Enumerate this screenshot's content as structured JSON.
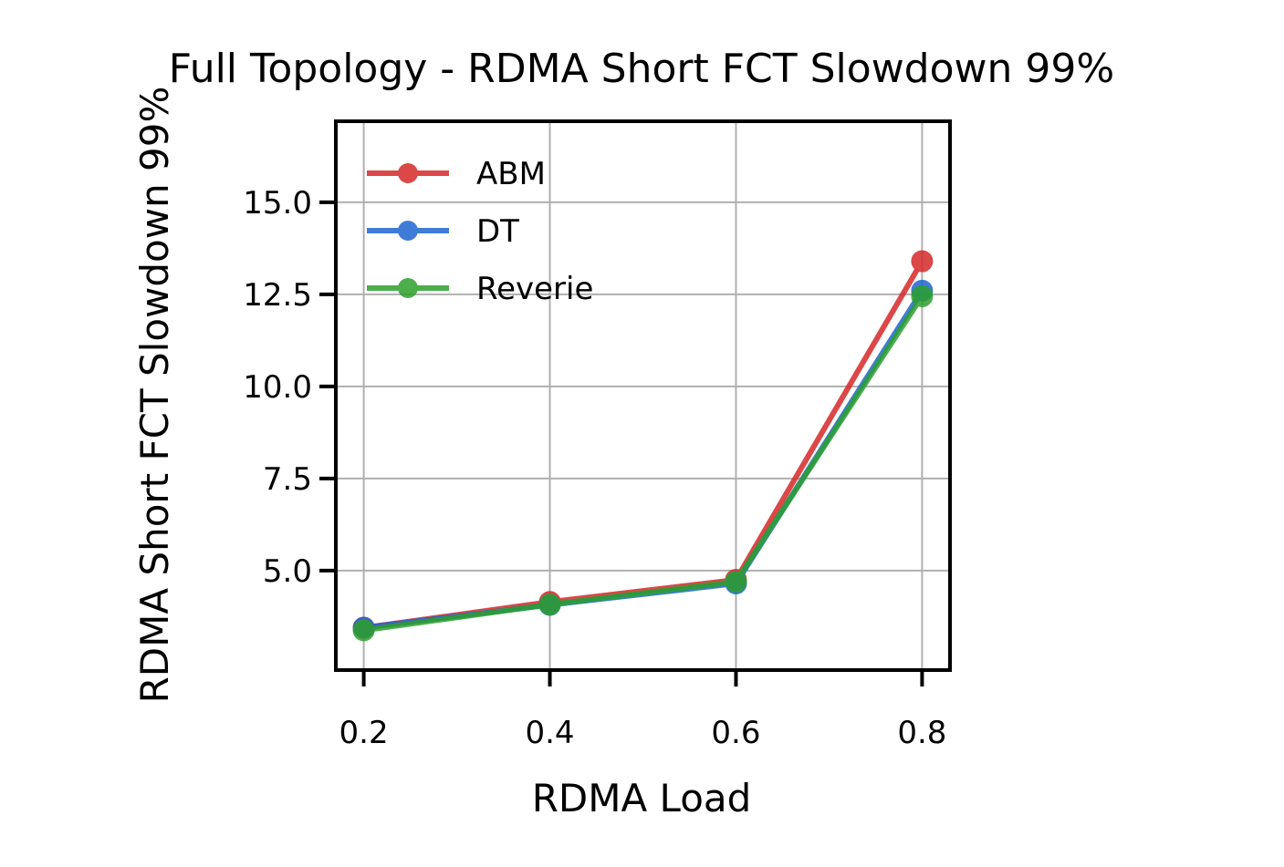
{
  "chart_data": {
    "type": "line",
    "title": "Full Topology - RDMA Short FCT Slowdown 99%",
    "xlabel": "RDMA Load",
    "ylabel": "RDMA Short FCT Slowdown 99%",
    "x": [
      0.2,
      0.4,
      0.6,
      0.8
    ],
    "xticks": [
      0.2,
      0.4,
      0.6,
      0.8
    ],
    "xtick_labels": [
      "0.2",
      "0.4",
      "0.6",
      "0.8"
    ],
    "yticks": [
      5.0,
      7.5,
      10.0,
      12.5,
      15.0
    ],
    "ytick_labels": [
      "5.0",
      "7.5",
      "10.0",
      "12.5",
      "15.0"
    ],
    "xlim": [
      0.17,
      0.83
    ],
    "ylim": [
      2.3,
      17.2
    ],
    "grid": true,
    "legend_position": "upper-left",
    "series": [
      {
        "name": "ABM",
        "color": "#d62728",
        "values": [
          3.45,
          4.15,
          4.75,
          13.4
        ]
      },
      {
        "name": "DT",
        "color": "#1f66d1",
        "values": [
          3.45,
          4.07,
          4.65,
          12.6
        ]
      },
      {
        "name": "Reverie",
        "color": "#2ca02c",
        "values": [
          3.38,
          4.08,
          4.7,
          12.45
        ]
      }
    ]
  }
}
